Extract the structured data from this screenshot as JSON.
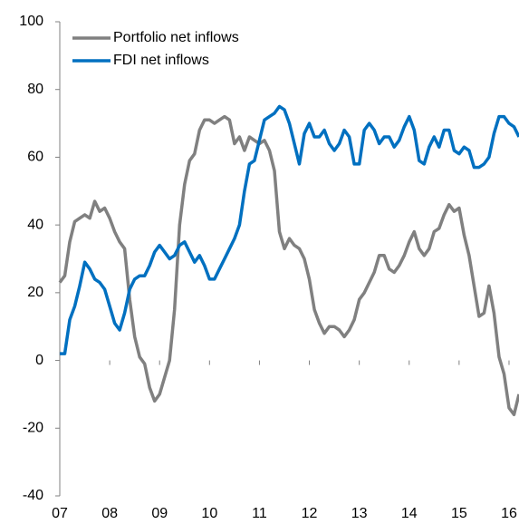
{
  "chart_data": {
    "type": "line",
    "x": [
      2007.0,
      2007.1,
      2007.2,
      2007.3,
      2007.4,
      2007.5,
      2007.6,
      2007.7,
      2007.8,
      2007.9,
      2008.0,
      2008.1,
      2008.2,
      2008.3,
      2008.4,
      2008.5,
      2008.6,
      2008.7,
      2008.8,
      2008.9,
      2009.0,
      2009.1,
      2009.2,
      2009.3,
      2009.4,
      2009.5,
      2009.6,
      2009.7,
      2009.8,
      2009.9,
      2010.0,
      2010.1,
      2010.2,
      2010.3,
      2010.4,
      2010.5,
      2010.6,
      2010.7,
      2010.8,
      2010.9,
      2011.0,
      2011.1,
      2011.2,
      2011.3,
      2011.4,
      2011.5,
      2011.6,
      2011.7,
      2011.8,
      2011.9,
      2012.0,
      2012.1,
      2012.2,
      2012.3,
      2012.4,
      2012.5,
      2012.6,
      2012.7,
      2012.8,
      2012.9,
      2013.0,
      2013.1,
      2013.2,
      2013.3,
      2013.4,
      2013.5,
      2013.6,
      2013.7,
      2013.8,
      2013.9,
      2014.0,
      2014.1,
      2014.2,
      2014.3,
      2014.4,
      2014.5,
      2014.6,
      2014.7,
      2014.8,
      2014.9,
      2015.0,
      2015.1,
      2015.2,
      2015.3,
      2015.4,
      2015.5,
      2015.6,
      2015.7,
      2015.8,
      2015.9,
      2016.0,
      2016.1,
      2016.2
    ],
    "series": [
      {
        "name": "Portfolio net inflows",
        "color": "#808080",
        "values": [
          23,
          25,
          35,
          41,
          42,
          43,
          42,
          47,
          44,
          45,
          42,
          38,
          35,
          33,
          18,
          7,
          1,
          -1,
          -8,
          -12,
          -10,
          -5,
          0,
          15,
          40,
          52,
          59,
          61,
          68,
          71,
          71,
          70,
          71,
          72,
          71,
          64,
          66,
          62,
          66,
          65,
          64,
          65,
          62,
          56,
          38,
          33,
          36,
          34,
          33,
          30,
          24,
          15,
          11,
          8,
          10,
          10,
          9,
          7,
          9,
          12,
          18,
          20,
          23,
          26,
          31,
          31,
          27,
          26,
          28,
          31,
          35,
          38,
          33,
          31,
          33,
          38,
          39,
          43,
          46,
          44,
          45,
          37,
          31,
          22,
          13,
          14,
          22,
          14,
          1,
          -4,
          -14,
          -16,
          -10
        ]
      },
      {
        "name": "FDI net inflows",
        "color": "#0070c0",
        "values": [
          2,
          2,
          12,
          16,
          22,
          29,
          27,
          24,
          23,
          21,
          16,
          11,
          9,
          14,
          21,
          24,
          25,
          25,
          28,
          32,
          34,
          32,
          30,
          31,
          34,
          35,
          32,
          29,
          31,
          28,
          24,
          24,
          27,
          30,
          33,
          36,
          40,
          50,
          58,
          59,
          65,
          71,
          72,
          73,
          75,
          74,
          70,
          64,
          58,
          67,
          70,
          66,
          66,
          68,
          64,
          62,
          64,
          68,
          66,
          58,
          58,
          68,
          70,
          68,
          64,
          66,
          66,
          63,
          65,
          69,
          72,
          68,
          59,
          58,
          63,
          66,
          63,
          68,
          68,
          62,
          61,
          63,
          62,
          57,
          57,
          58,
          60,
          67,
          72,
          72,
          70,
          69,
          66
        ]
      }
    ],
    "xlim": [
      2007,
      2016.2
    ],
    "xticks": [
      {
        "value": 2007,
        "label": "07"
      },
      {
        "value": 2008,
        "label": "08"
      },
      {
        "value": 2009,
        "label": "09"
      },
      {
        "value": 2010,
        "label": "10"
      },
      {
        "value": 2011,
        "label": "11"
      },
      {
        "value": 2012,
        "label": "12"
      },
      {
        "value": 2013,
        "label": "13"
      },
      {
        "value": 2014,
        "label": "14"
      },
      {
        "value": 2015,
        "label": "15"
      },
      {
        "value": 2016,
        "label": "16"
      }
    ],
    "ylim": [
      -40,
      100
    ],
    "yticks": [
      -40,
      -20,
      0,
      20,
      40,
      60,
      80,
      100
    ],
    "legend": "top-left"
  }
}
